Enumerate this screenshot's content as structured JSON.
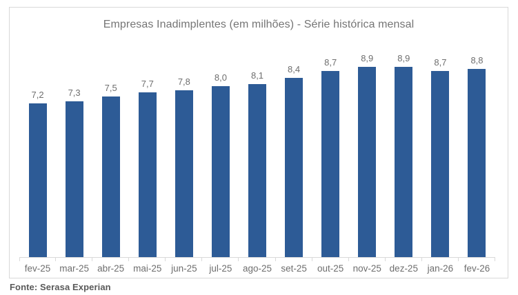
{
  "chart": {
    "source": "Fonte: Serasa Experian",
    "bar_color": "#2d5b96",
    "axis_color": "#d9d9d9",
    "title_color": "#757575",
    "label_color": "#6e6e6e"
  },
  "chart_data": {
    "type": "bar",
    "title": "Empresas Inadimplentes (em milhões) - Série histórica mensal",
    "categories": [
      "fev-25",
      "mar-25",
      "abr-25",
      "mai-25",
      "jun-25",
      "jul-25",
      "ago-25",
      "set-25",
      "out-25",
      "nov-25",
      "dez-25",
      "jan-26",
      "fev-26"
    ],
    "values": [
      7.2,
      7.3,
      7.5,
      7.7,
      7.8,
      8.0,
      8.1,
      8.4,
      8.7,
      8.9,
      8.9,
      8.7,
      8.8
    ],
    "value_labels": [
      "7,2",
      "7,3",
      "7,5",
      "7,7",
      "7,8",
      "8,0",
      "8,1",
      "8,4",
      "8,7",
      "8,9",
      "8,9",
      "8,7",
      "8,8"
    ],
    "xlabel": "",
    "ylabel": "",
    "ylim": [
      0,
      9.2
    ],
    "grid": false,
    "legend": false,
    "data_labels": true
  }
}
